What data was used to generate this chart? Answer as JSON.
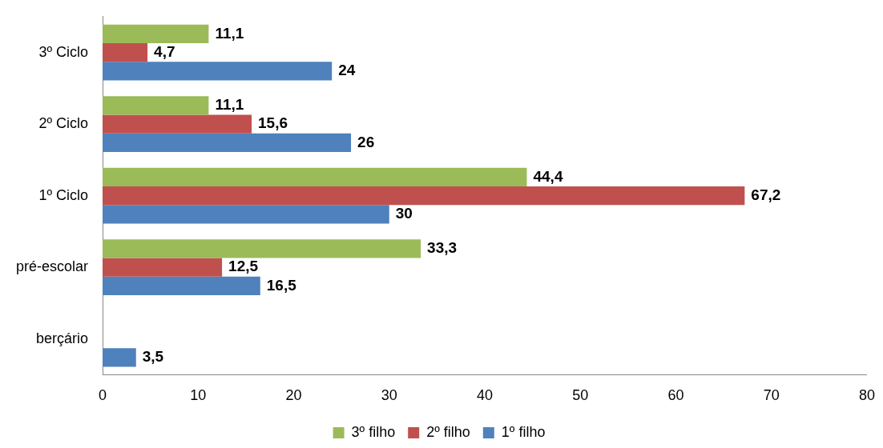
{
  "chart_data": {
    "type": "bar",
    "orientation": "horizontal",
    "categories": [
      "3º Ciclo",
      "2º Ciclo",
      "1º Ciclo",
      "pré-escolar",
      "berçário"
    ],
    "series": [
      {
        "name": "3º filho",
        "color": "#9bbb59",
        "values": [
          11.1,
          11.1,
          44.4,
          33.3,
          null
        ],
        "value_labels": [
          "11,1",
          "11,1",
          "44,4",
          "33,3",
          null
        ]
      },
      {
        "name": "2º filho",
        "color": "#c0504d",
        "values": [
          4.7,
          15.6,
          67.2,
          12.5,
          null
        ],
        "value_labels": [
          "4,7",
          "15,6",
          "67,2",
          "12,5",
          null
        ]
      },
      {
        "name": "1º filho",
        "color": "#4f81bd",
        "values": [
          24,
          26,
          30,
          16.5,
          3.5
        ],
        "value_labels": [
          "24",
          "26",
          "30",
          "16,5",
          "3,5"
        ]
      }
    ],
    "xlim": [
      0,
      80
    ],
    "xticks": [
      0,
      10,
      20,
      30,
      40,
      50,
      60,
      70,
      80
    ],
    "grid": false,
    "legend": "bottom"
  }
}
